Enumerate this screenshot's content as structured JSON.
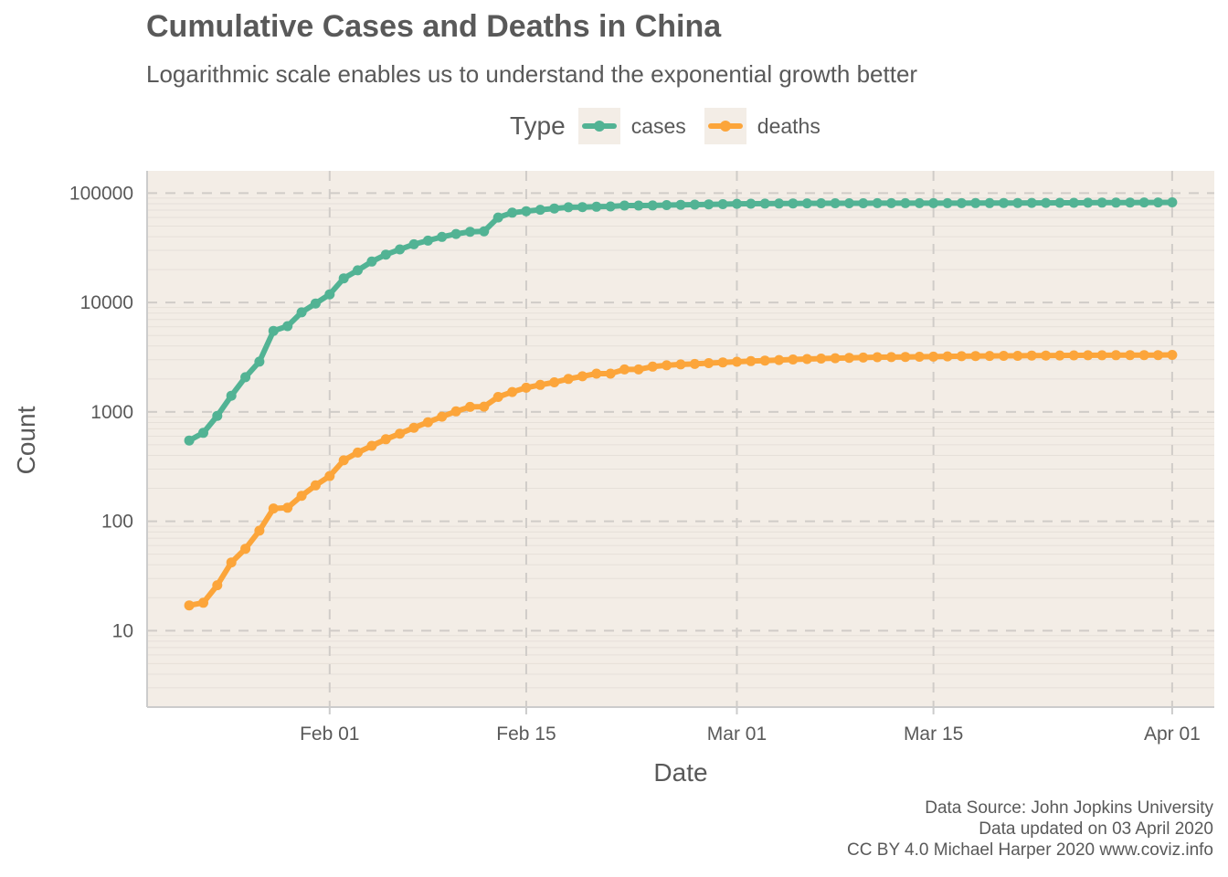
{
  "title": "Cumulative Cases and Deaths in China",
  "subtitle": "Logarithmic scale enables us to understand the exponential growth better",
  "legend": {
    "title": "Type",
    "items": [
      {
        "label": "cases",
        "color": "#52b394"
      },
      {
        "label": "deaths",
        "color": "#fca53a"
      }
    ]
  },
  "caption": {
    "line1": "Data Source: John Jopkins University",
    "line2": "Data updated on 03 April 2020",
    "line3": "CC BY 4.0 Michael Harper 2020 www.coviz.info"
  },
  "chart_data": {
    "type": "line",
    "xlabel": "Date",
    "ylabel": "Count",
    "y_scale": "log10",
    "ylim": [
      2,
      160000
    ],
    "xlim": [
      "2020-01-19",
      "2020-04-04"
    ],
    "x_ticks": [
      {
        "date": "2020-02-01",
        "label": "Feb 01"
      },
      {
        "date": "2020-02-15",
        "label": "Feb 15"
      },
      {
        "date": "2020-03-01",
        "label": "Mar 01"
      },
      {
        "date": "2020-03-15",
        "label": "Mar 15"
      },
      {
        "date": "2020-04-01",
        "label": "Apr 01"
      }
    ],
    "y_ticks": [
      {
        "value": 10,
        "label": "10"
      },
      {
        "value": 100,
        "label": "100"
      },
      {
        "value": 1000,
        "label": "1000"
      },
      {
        "value": 10000,
        "label": "10000"
      },
      {
        "value": 100000,
        "label": "100000"
      }
    ],
    "grid": true,
    "legend_position": "top",
    "x": [
      "2020-01-22",
      "2020-01-23",
      "2020-01-24",
      "2020-01-25",
      "2020-01-26",
      "2020-01-27",
      "2020-01-28",
      "2020-01-29",
      "2020-01-30",
      "2020-01-31",
      "2020-02-01",
      "2020-02-02",
      "2020-02-03",
      "2020-02-04",
      "2020-02-05",
      "2020-02-06",
      "2020-02-07",
      "2020-02-08",
      "2020-02-09",
      "2020-02-10",
      "2020-02-11",
      "2020-02-12",
      "2020-02-13",
      "2020-02-14",
      "2020-02-15",
      "2020-02-16",
      "2020-02-17",
      "2020-02-18",
      "2020-02-19",
      "2020-02-20",
      "2020-02-21",
      "2020-02-22",
      "2020-02-23",
      "2020-02-24",
      "2020-02-25",
      "2020-02-26",
      "2020-02-27",
      "2020-02-28",
      "2020-02-29",
      "2020-03-01",
      "2020-03-02",
      "2020-03-03",
      "2020-03-04",
      "2020-03-05",
      "2020-03-06",
      "2020-03-07",
      "2020-03-08",
      "2020-03-09",
      "2020-03-10",
      "2020-03-11",
      "2020-03-12",
      "2020-03-13",
      "2020-03-14",
      "2020-03-15",
      "2020-03-16",
      "2020-03-17",
      "2020-03-18",
      "2020-03-19",
      "2020-03-20",
      "2020-03-21",
      "2020-03-22",
      "2020-03-23",
      "2020-03-24",
      "2020-03-25",
      "2020-03-26",
      "2020-03-27",
      "2020-03-28",
      "2020-03-29",
      "2020-03-30",
      "2020-03-31",
      "2020-04-01"
    ],
    "series": [
      {
        "name": "cases",
        "color": "#52b394",
        "values": [
          548,
          643,
          920,
          1406,
          2075,
          2877,
          5509,
          6087,
          8141,
          9802,
          11891,
          16630,
          19716,
          23707,
          27440,
          30587,
          34110,
          36814,
          39829,
          42354,
          44386,
          44759,
          59895,
          66358,
          68413,
          70513,
          72434,
          74211,
          74619,
          75077,
          75550,
          77001,
          77022,
          77241,
          77754,
          78166,
          78600,
          78928,
          79356,
          79932,
          80136,
          80261,
          80386,
          80537,
          80690,
          80770,
          80823,
          80860,
          80887,
          80921,
          80932,
          80945,
          80977,
          81003,
          81033,
          81058,
          81102,
          81156,
          81250,
          81305,
          81435,
          81498,
          81591,
          81661,
          81782,
          81897,
          81999,
          82122,
          82198,
          82279,
          82361
        ]
      },
      {
        "name": "deaths",
        "color": "#fca53a",
        "values": [
          17,
          18,
          26,
          42,
          56,
          82,
          131,
          133,
          171,
          213,
          259,
          361,
          425,
          490,
          562,
          632,
          717,
          804,
          904,
          1011,
          1112,
          1117,
          1369,
          1521,
          1663,
          1766,
          1864,
          2003,
          2116,
          2238,
          2238,
          2443,
          2445,
          2595,
          2665,
          2717,
          2746,
          2790,
          2837,
          2872,
          2914,
          2947,
          2983,
          3015,
          3044,
          3072,
          3100,
          3123,
          3139,
          3161,
          3172,
          3180,
          3193,
          3203,
          3217,
          3230,
          3241,
          3249,
          3253,
          3259,
          3274,
          3274,
          3281,
          3285,
          3291,
          3296,
          3299,
          3304,
          3308,
          3309,
          3316
        ]
      }
    ]
  }
}
